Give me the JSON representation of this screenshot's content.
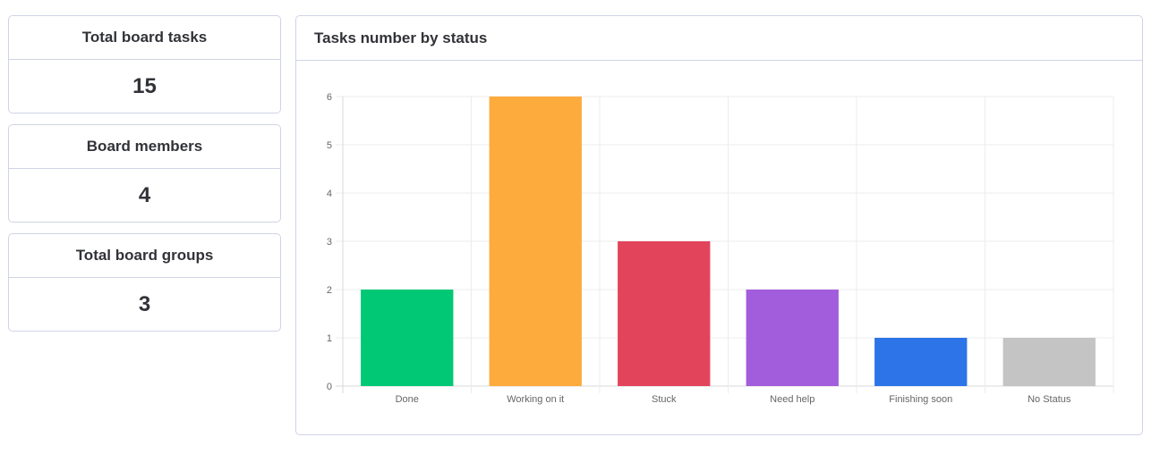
{
  "stats": [
    {
      "label": "Total board tasks",
      "value": "15"
    },
    {
      "label": "Board members",
      "value": "4"
    },
    {
      "label": "Total board groups",
      "value": "3"
    }
  ],
  "chart_card": {
    "title": "Tasks number by status"
  },
  "chart_data": {
    "type": "bar",
    "title": "Tasks number by status",
    "categories": [
      "Done",
      "Working on it",
      "Stuck",
      "Need help",
      "Finishing soon",
      "No Status"
    ],
    "values": [
      2,
      6,
      3,
      2,
      1,
      1
    ],
    "colors": [
      "#00c875",
      "#fdab3d",
      "#e2445c",
      "#a25ddc",
      "#2c74e8",
      "#c4c4c4"
    ],
    "ylim": [
      0,
      6
    ],
    "yticks": [
      0,
      1,
      2,
      3,
      4,
      5,
      6
    ],
    "grid": true,
    "xlabel": "",
    "ylabel": ""
  }
}
